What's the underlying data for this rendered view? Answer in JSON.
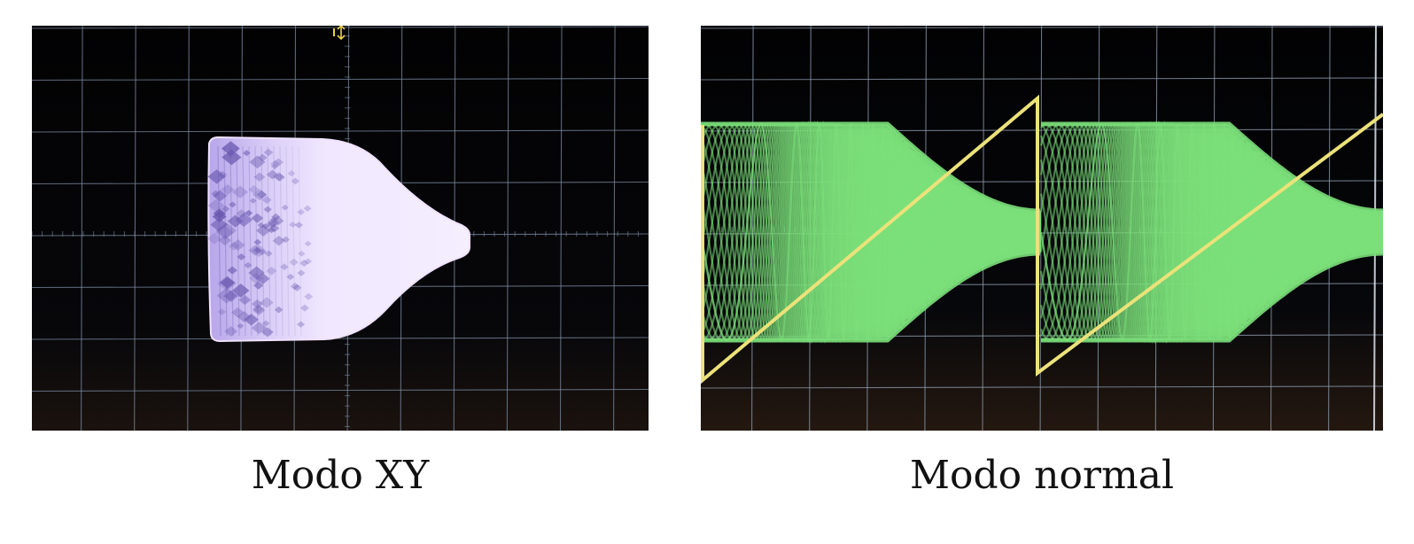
{
  "figure": {
    "panels": [
      {
        "caption": "Modo XY",
        "trace_color": "#efe2ff",
        "trace_shadow_color": "#6a5ab0",
        "background_color": "#050505",
        "grid_color": "#7a8aa0",
        "marker_color": "#e8d24a"
      },
      {
        "caption": "Modo normal",
        "trace_color": "#7be07a",
        "ramp_color": "#ece27a",
        "background_color": "#050505",
        "grid_color": "#8e9eb0"
      }
    ]
  }
}
